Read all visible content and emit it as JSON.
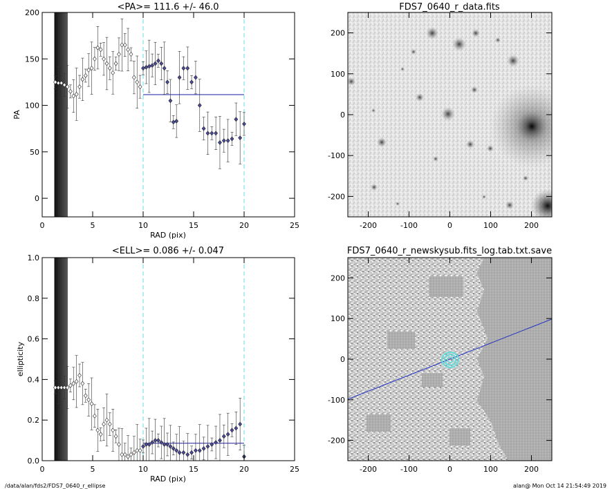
{
  "footer": {
    "path": "/data/alan/fds2/FDS7_0640_r_ellipse",
    "stamp": "alan@  Mon Oct 14 21:54:49 2019"
  },
  "panels": {
    "pa": {
      "title": "<PA>= 111.6 +/-  46.0",
      "xlabel": "RAD (pix)",
      "ylabel": "PA",
      "xticks": [
        "0",
        "5",
        "10",
        "15",
        "20",
        "25"
      ],
      "yticks": [
        "0",
        "50",
        "100",
        "150",
        "200"
      ]
    },
    "ell": {
      "title": "<ELL>= 0.086 +/-  0.047",
      "xlabel": "RAD (pix)",
      "ylabel": "ellipticity",
      "xticks": [
        "0",
        "5",
        "10",
        "15",
        "20",
        "25"
      ],
      "yticks": [
        "0.0",
        "0.2",
        "0.4",
        "0.6",
        "0.8",
        "1.0"
      ]
    },
    "image": {
      "title": "FDS7_0640_r_data.fits",
      "xticks": [
        "-200",
        "-100",
        "0",
        "100",
        "200"
      ],
      "yticks": [
        "-200",
        "-100",
        "0",
        "100",
        "200"
      ]
    },
    "mask": {
      "title": "FDS7_0640_r_newskysub.fits_log.tab.txt.save",
      "xticks": [
        "-200",
        "-100",
        "0",
        "100",
        "200"
      ],
      "yticks": [
        "-200",
        "-100",
        "0",
        "100",
        "200"
      ]
    }
  },
  "colors": {
    "fit_marker": "#4a4a9a",
    "mean_line": "#1a1aa0",
    "cyan": "#66dddd",
    "galaxy_line": "#2030c0"
  },
  "chart_data": [
    {
      "type": "scatter",
      "title": "<PA>= 111.6 +/-  46.0",
      "xlabel": "RAD (pix)",
      "ylabel": "PA",
      "xlim": [
        0,
        25
      ],
      "ylim": [
        -20,
        200
      ],
      "mean": 111.6,
      "mean_range": [
        10,
        20
      ],
      "vlines": [
        10,
        20
      ],
      "series": [
        {
          "values_x": [
            1.3,
            1.6,
            1.9,
            2.2,
            2.5,
            2.8,
            3.1,
            3.4,
            3.7,
            4.0,
            4.3,
            4.6,
            4.9,
            5.2,
            5.5,
            5.8,
            6.1,
            6.4,
            6.7,
            7.0,
            7.3,
            7.6,
            7.9,
            8.2,
            8.5,
            8.8,
            9.1,
            9.4,
            9.7
          ],
          "values_y": [
            125,
            124,
            124,
            122,
            120,
            115,
            110,
            112,
            120,
            128,
            132,
            138,
            140,
            150,
            162,
            160,
            150,
            145,
            140,
            135,
            145,
            155,
            165,
            165,
            160,
            155,
            130,
            125,
            120
          ]
        },
        {
          "values_x": [
            10.0,
            10.3,
            10.6,
            10.9,
            11.2,
            11.5,
            11.8,
            12.1,
            12.4,
            12.7,
            13.0,
            13.3,
            13.6,
            14.0,
            14.4,
            14.8,
            15.2,
            15.6,
            16.0,
            16.4,
            16.8,
            17.2,
            17.6,
            18.0,
            18.4,
            18.8,
            19.2,
            19.6,
            20.0
          ],
          "values_y": [
            140,
            141,
            142,
            143,
            145,
            148,
            145,
            140,
            125,
            105,
            82,
            83,
            130,
            140,
            140,
            125,
            130,
            100,
            75,
            70,
            70,
            70,
            60,
            62,
            62,
            64,
            85,
            65,
            80
          ]
        }
      ]
    },
    {
      "type": "scatter",
      "title": "<ELL>= 0.086 +/-  0.047",
      "xlabel": "RAD (pix)",
      "ylabel": "ellipticity",
      "xlim": [
        0,
        25
      ],
      "ylim": [
        0,
        1
      ],
      "mean": 0.086,
      "mean_range": [
        10,
        20
      ],
      "vlines": [
        10,
        20
      ],
      "series": [
        {
          "values_x": [
            1.3,
            1.6,
            1.9,
            2.2,
            2.5,
            2.8,
            3.1,
            3.4,
            3.7,
            4.0,
            4.3,
            4.6,
            4.9,
            5.2,
            5.5,
            5.8,
            6.1,
            6.4,
            6.7,
            7.0,
            7.3,
            7.6,
            7.9,
            8.2,
            8.5,
            8.8,
            9.1,
            9.4,
            9.7
          ],
          "values_y": [
            0.36,
            0.36,
            0.36,
            0.36,
            0.36,
            0.37,
            0.38,
            0.39,
            0.42,
            0.38,
            0.32,
            0.3,
            0.28,
            0.22,
            0.15,
            0.13,
            0.18,
            0.2,
            0.18,
            0.15,
            0.12,
            0.08,
            0.03,
            0.03,
            0.02,
            0.03,
            0.04,
            0.05,
            0.05
          ]
        },
        {
          "values_x": [
            10.0,
            10.3,
            10.6,
            10.9,
            11.2,
            11.5,
            11.8,
            12.1,
            12.4,
            12.7,
            13.0,
            13.3,
            13.6,
            14.0,
            14.4,
            14.8,
            15.2,
            15.6,
            16.0,
            16.4,
            16.8,
            17.2,
            17.6,
            18.0,
            18.4,
            18.8,
            19.2,
            19.6,
            20.0
          ],
          "values_y": [
            0.07,
            0.08,
            0.08,
            0.09,
            0.1,
            0.1,
            0.09,
            0.08,
            0.08,
            0.07,
            0.06,
            0.05,
            0.04,
            0.04,
            0.03,
            0.04,
            0.05,
            0.05,
            0.06,
            0.07,
            0.08,
            0.09,
            0.1,
            0.12,
            0.13,
            0.15,
            0.16,
            0.18,
            0.02
          ]
        }
      ]
    },
    {
      "type": "heatmap",
      "title": "FDS7_0640_r_data.fits",
      "xlim": [
        -250,
        250
      ],
      "ylim": [
        -250,
        250
      ]
    },
    {
      "type": "heatmap",
      "title": "FDS7_0640_r_newskysub.fits_log.tab.txt.save",
      "xlim": [
        -250,
        250
      ],
      "ylim": [
        -250,
        250
      ]
    }
  ]
}
